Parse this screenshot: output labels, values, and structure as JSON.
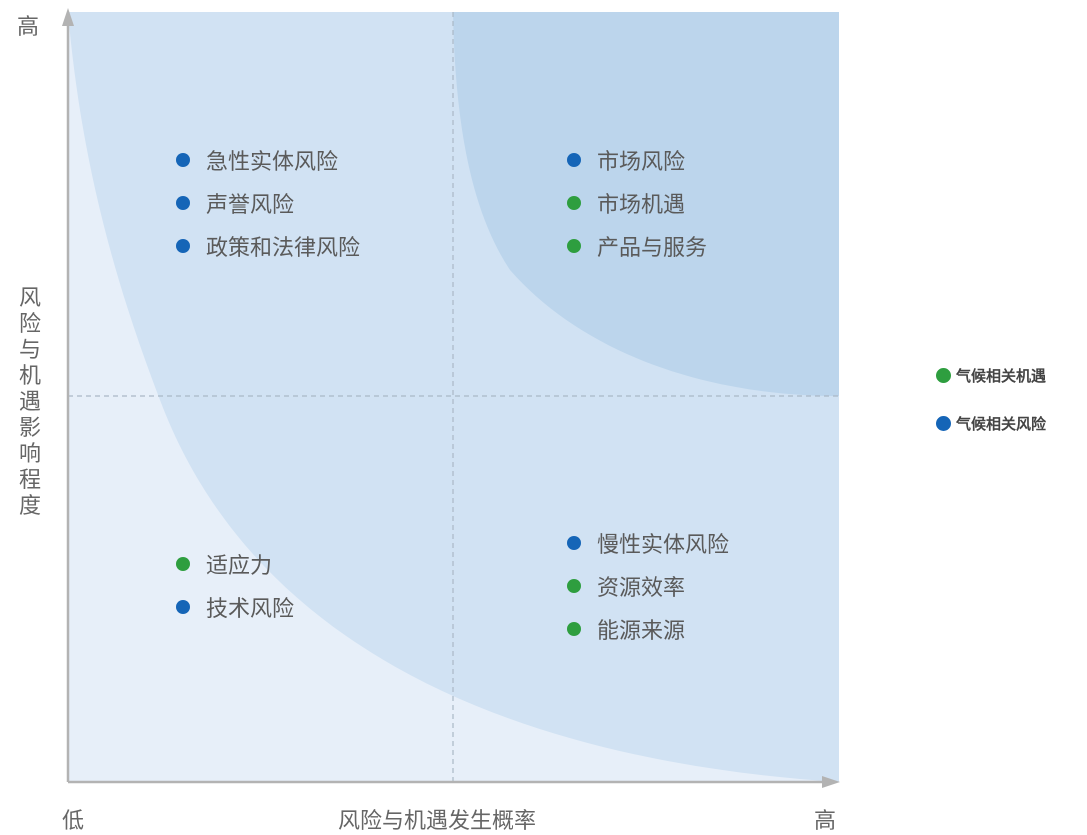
{
  "colors": {
    "opportunity": "#2e9e3f",
    "risk": "#1565b7",
    "bg_low": "#e7eff9",
    "bg_mid": "#d1e2f3",
    "bg_high": "#bcd5ec"
  },
  "axes": {
    "y_high": "高",
    "y_title": "风险与机遇影响程度",
    "x_low": "低",
    "x_title": "风险与机遇发生概率",
    "x_high": "高"
  },
  "quadrants": {
    "top_left": [
      {
        "label": "急性实体风险",
        "type": "risk"
      },
      {
        "label": "声誉风险",
        "type": "risk"
      },
      {
        "label": "政策和法律风险",
        "type": "risk"
      }
    ],
    "top_right": [
      {
        "label": "市场风险",
        "type": "risk"
      },
      {
        "label": "市场机遇",
        "type": "opportunity"
      },
      {
        "label": "产品与服务",
        "type": "opportunity"
      }
    ],
    "bottom_left": [
      {
        "label": "适应力",
        "type": "opportunity"
      },
      {
        "label": "技术风险",
        "type": "risk"
      }
    ],
    "bottom_right": [
      {
        "label": "慢性实体风险",
        "type": "risk"
      },
      {
        "label": "资源效率",
        "type": "opportunity"
      },
      {
        "label": "能源来源",
        "type": "opportunity"
      }
    ]
  },
  "legend": [
    {
      "label": "气候相关机遇",
      "type": "opportunity"
    },
    {
      "label": "气候相关风险",
      "type": "risk"
    }
  ]
}
